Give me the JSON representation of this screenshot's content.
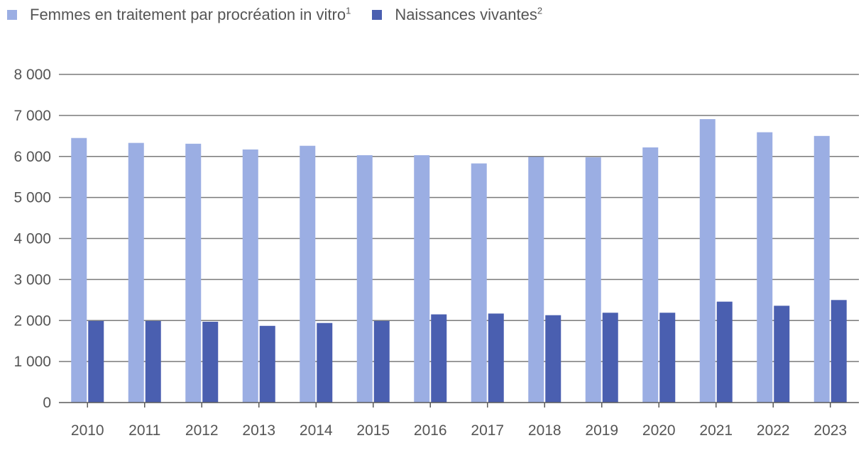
{
  "legend": {
    "series1_label": "Femmes en traitement par procréation in vitro",
    "series1_note": "1",
    "series2_label": "Naissances vivantes",
    "series2_note": "2"
  },
  "chart_data": {
    "type": "bar",
    "categories": [
      "2010",
      "2011",
      "2012",
      "2013",
      "2014",
      "2015",
      "2016",
      "2017",
      "2018",
      "2019",
      "2020",
      "2021",
      "2022",
      "2023"
    ],
    "series": [
      {
        "name": "Femmes en traitement par procréation in vitro",
        "color": "#9baee3",
        "values": [
          6450,
          6330,
          6310,
          6170,
          6260,
          6030,
          6030,
          5830,
          5990,
          5980,
          6220,
          6910,
          6590,
          6500
        ]
      },
      {
        "name": "Naissances vivantes",
        "color": "#4a5fb0",
        "values": [
          1990,
          1990,
          1970,
          1870,
          1940,
          1990,
          2150,
          2170,
          2130,
          2190,
          2190,
          2460,
          2360,
          2500
        ]
      }
    ],
    "ylim": [
      0,
      8000
    ],
    "yticks": [
      0,
      1000,
      2000,
      3000,
      4000,
      5000,
      6000,
      7000,
      8000
    ],
    "ytick_labels": [
      "0",
      "1 000",
      "2 000",
      "3 000",
      "4 000",
      "5 000",
      "6 000",
      "7 000",
      "8 000"
    ],
    "grid": true,
    "legend_position": "top-left"
  }
}
